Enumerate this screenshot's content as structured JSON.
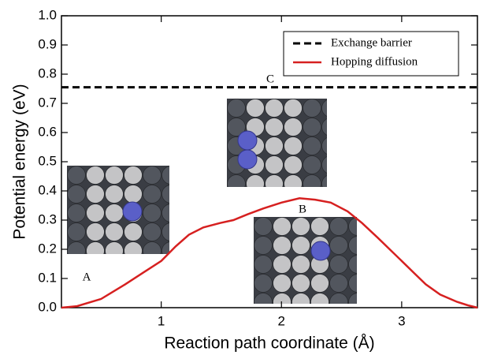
{
  "chart_data": {
    "type": "line",
    "xlabel": "Reaction path coordinate (Å)",
    "ylabel": "Potential energy (eV)",
    "xlim": [
      0.17,
      3.63
    ],
    "ylim": [
      0,
      1.0
    ],
    "xticks": [
      1,
      2,
      3
    ],
    "yticks": [
      {
        "value": 0,
        "label": "0.0"
      },
      {
        "value": 0.1,
        "label": "0.1"
      },
      {
        "value": 0.2,
        "label": "0.2"
      },
      {
        "value": 0.3,
        "label": "0.3"
      },
      {
        "value": 0.4,
        "label": "0.4"
      },
      {
        "value": 0.5,
        "label": "0.5"
      },
      {
        "value": 0.6,
        "label": "0.6"
      },
      {
        "value": 0.7,
        "label": "0.7"
      },
      {
        "value": 0.8,
        "label": "0.8"
      },
      {
        "value": 0.9,
        "label": "0.9"
      },
      {
        "value": 1.0,
        "label": "1.0"
      }
    ],
    "legend_position": "upper right",
    "series": [
      {
        "name": "Exchange barrier",
        "color": "#000000",
        "dashed": true,
        "x": [
          0.17,
          3.63
        ],
        "values": [
          0.755,
          0.755
        ]
      },
      {
        "name": "Hopping diffusion",
        "color": "#d62020",
        "dashed": false,
        "x": [
          0.17,
          0.3,
          0.5,
          0.7,
          0.85,
          1.0,
          1.12,
          1.23,
          1.35,
          1.49,
          1.6,
          1.72,
          1.85,
          2.0,
          2.15,
          2.28,
          2.41,
          2.55,
          2.67,
          2.8,
          2.9,
          3.0,
          3.1,
          3.2,
          3.32,
          3.46,
          3.55,
          3.63
        ],
        "values": [
          0.0,
          0.005,
          0.03,
          0.08,
          0.12,
          0.16,
          0.21,
          0.25,
          0.275,
          0.29,
          0.3,
          0.32,
          0.34,
          0.36,
          0.375,
          0.37,
          0.36,
          0.33,
          0.29,
          0.24,
          0.2,
          0.16,
          0.12,
          0.08,
          0.045,
          0.02,
          0.008,
          0.0
        ]
      }
    ],
    "annotations": [
      "A",
      "B",
      "C"
    ]
  }
}
